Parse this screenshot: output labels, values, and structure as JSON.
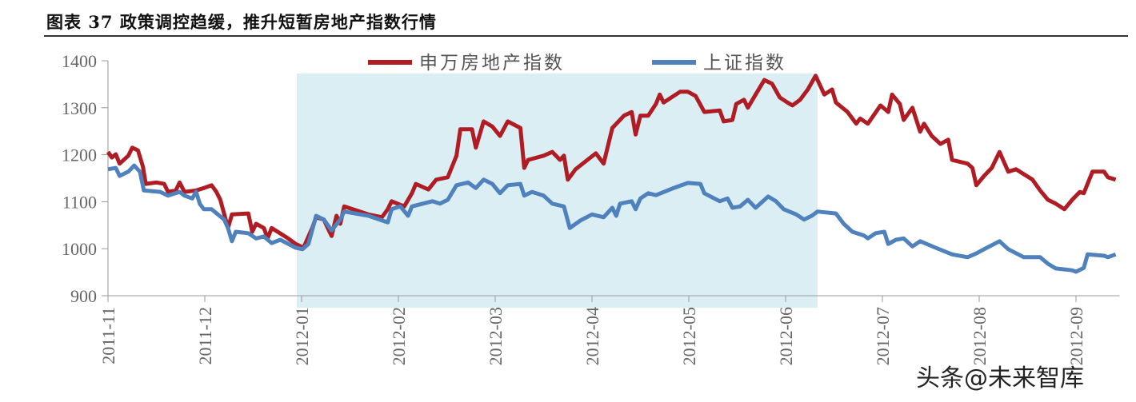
{
  "title": "图表 37  政策调控趋缓，推升短暂房地产指数行情",
  "watermark": "头条@未来智库",
  "chart_data": {
    "type": "line",
    "title": "政策调控趋缓，推升短暂房地产指数行情",
    "x_unit": "months since 2011-11-01",
    "x_ticks": [
      {
        "m": 0,
        "label": "2011-11"
      },
      {
        "m": 1,
        "label": "2011-12"
      },
      {
        "m": 2,
        "label": "2012-01"
      },
      {
        "m": 3,
        "label": "2012-02"
      },
      {
        "m": 4,
        "label": "2012-03"
      },
      {
        "m": 5,
        "label": "2012-04"
      },
      {
        "m": 6,
        "label": "2012-05"
      },
      {
        "m": 7,
        "label": "2012-06"
      },
      {
        "m": 8,
        "label": "2012-07"
      },
      {
        "m": 9,
        "label": "2012-08"
      },
      {
        "m": 10,
        "label": "2012-09"
      }
    ],
    "y_ticks": [
      900,
      1000,
      1100,
      1200,
      1300,
      1400
    ],
    "ylim": [
      900,
      1400
    ],
    "xlim": [
      0,
      10.45
    ],
    "grid": false,
    "legend_position": "top-center",
    "shaded_period": {
      "x_from": 1.95,
      "x_to": 7.33,
      "color": "#daeef3"
    },
    "series": [
      {
        "name": "申万房地产指数",
        "color": "#b01c24",
        "points": [
          [
            0,
            1206
          ],
          [
            0.04,
            1194
          ],
          [
            0.08,
            1201
          ],
          [
            0.12,
            1181
          ],
          [
            0.21,
            1198
          ],
          [
            0.25,
            1215
          ],
          [
            0.31,
            1209
          ],
          [
            0.36,
            1175
          ],
          [
            0.39,
            1138
          ],
          [
            0.5,
            1141
          ],
          [
            0.58,
            1138
          ],
          [
            0.62,
            1121
          ],
          [
            0.7,
            1124
          ],
          [
            0.74,
            1141
          ],
          [
            0.79,
            1121
          ],
          [
            0.91,
            1124
          ],
          [
            0.99,
            1129
          ],
          [
            1.07,
            1135
          ],
          [
            1.12,
            1121
          ],
          [
            1.16,
            1104
          ],
          [
            1.24,
            1044
          ],
          [
            1.28,
            1073
          ],
          [
            1.45,
            1075
          ],
          [
            1.49,
            1036
          ],
          [
            1.53,
            1053
          ],
          [
            1.61,
            1044
          ],
          [
            1.65,
            1022
          ],
          [
            1.69,
            1044
          ],
          [
            1.86,
            1022
          ],
          [
            1.94,
            1010
          ],
          [
            2.02,
            1002
          ],
          [
            2.11,
            1044
          ],
          [
            2.15,
            1067
          ],
          [
            2.23,
            1062
          ],
          [
            2.27,
            1044
          ],
          [
            2.31,
            1027
          ],
          [
            2.36,
            1070
          ],
          [
            2.4,
            1053
          ],
          [
            2.44,
            1090
          ],
          [
            2.69,
            1073
          ],
          [
            2.83,
            1067
          ],
          [
            2.89,
            1084
          ],
          [
            2.93,
            1101
          ],
          [
            3.06,
            1090
          ],
          [
            3.14,
            1118
          ],
          [
            3.18,
            1138
          ],
          [
            3.31,
            1126
          ],
          [
            3.39,
            1147
          ],
          [
            3.51,
            1152
          ],
          [
            3.6,
            1198
          ],
          [
            3.64,
            1254
          ],
          [
            3.76,
            1254
          ],
          [
            3.8,
            1215
          ],
          [
            3.88,
            1271
          ],
          [
            3.97,
            1260
          ],
          [
            4.05,
            1240
          ],
          [
            4.13,
            1271
          ],
          [
            4.26,
            1257
          ],
          [
            4.3,
            1172
          ],
          [
            4.34,
            1189
          ],
          [
            4.5,
            1198
          ],
          [
            4.59,
            1206
          ],
          [
            4.67,
            1189
          ],
          [
            4.71,
            1198
          ],
          [
            4.75,
            1147
          ],
          [
            4.83,
            1169
          ],
          [
            5.04,
            1203
          ],
          [
            5.12,
            1181
          ],
          [
            5.21,
            1257
          ],
          [
            5.33,
            1283
          ],
          [
            5.41,
            1291
          ],
          [
            5.45,
            1243
          ],
          [
            5.5,
            1283
          ],
          [
            5.58,
            1283
          ],
          [
            5.66,
            1308
          ],
          [
            5.7,
            1328
          ],
          [
            5.74,
            1311
          ],
          [
            5.91,
            1334
          ],
          [
            5.99,
            1334
          ],
          [
            6.07,
            1325
          ],
          [
            6.16,
            1291
          ],
          [
            6.32,
            1294
          ],
          [
            6.36,
            1271
          ],
          [
            6.45,
            1274
          ],
          [
            6.49,
            1308
          ],
          [
            6.57,
            1317
          ],
          [
            6.61,
            1300
          ],
          [
            6.69,
            1328
          ],
          [
            6.78,
            1359
          ],
          [
            6.86,
            1351
          ],
          [
            6.94,
            1322
          ],
          [
            7.02,
            1311
          ],
          [
            7.07,
            1305
          ],
          [
            7.15,
            1317
          ],
          [
            7.23,
            1339
          ],
          [
            7.31,
            1368
          ],
          [
            7.4,
            1328
          ],
          [
            7.48,
            1339
          ],
          [
            7.52,
            1311
          ],
          [
            7.64,
            1291
          ],
          [
            7.73,
            1266
          ],
          [
            7.77,
            1277
          ],
          [
            7.85,
            1266
          ],
          [
            7.98,
            1305
          ],
          [
            8.06,
            1291
          ],
          [
            8.1,
            1328
          ],
          [
            8.18,
            1308
          ],
          [
            8.22,
            1274
          ],
          [
            8.31,
            1300
          ],
          [
            8.39,
            1249
          ],
          [
            8.43,
            1266
          ],
          [
            8.51,
            1240
          ],
          [
            8.6,
            1223
          ],
          [
            8.68,
            1232
          ],
          [
            8.72,
            1189
          ],
          [
            8.88,
            1181
          ],
          [
            8.93,
            1172
          ],
          [
            8.97,
            1135
          ],
          [
            9.05,
            1155
          ],
          [
            9.13,
            1172
          ],
          [
            9.21,
            1206
          ],
          [
            9.3,
            1164
          ],
          [
            9.38,
            1169
          ],
          [
            9.55,
            1147
          ],
          [
            9.63,
            1124
          ],
          [
            9.71,
            1104
          ],
          [
            9.79,
            1096
          ],
          [
            9.88,
            1084
          ],
          [
            9.96,
            1104
          ],
          [
            10.04,
            1121
          ],
          [
            10.08,
            1118
          ],
          [
            10.17,
            1164
          ],
          [
            10.29,
            1164
          ],
          [
            10.33,
            1152
          ],
          [
            10.41,
            1147
          ]
        ]
      },
      {
        "name": "上证指数",
        "color": "#4f81bd",
        "points": [
          [
            0,
            1169
          ],
          [
            0.08,
            1172
          ],
          [
            0.12,
            1155
          ],
          [
            0.21,
            1164
          ],
          [
            0.27,
            1177
          ],
          [
            0.33,
            1164
          ],
          [
            0.37,
            1124
          ],
          [
            0.54,
            1121
          ],
          [
            0.62,
            1113
          ],
          [
            0.74,
            1121
          ],
          [
            0.79,
            1113
          ],
          [
            0.87,
            1107
          ],
          [
            0.91,
            1121
          ],
          [
            0.95,
            1095
          ],
          [
            0.99,
            1084
          ],
          [
            1.07,
            1084
          ],
          [
            1.2,
            1062
          ],
          [
            1.24,
            1044
          ],
          [
            1.28,
            1016
          ],
          [
            1.32,
            1036
          ],
          [
            1.45,
            1033
          ],
          [
            1.53,
            1022
          ],
          [
            1.61,
            1026
          ],
          [
            1.69,
            1012
          ],
          [
            1.78,
            1019
          ],
          [
            1.94,
            1002
          ],
          [
            2.01,
            999
          ],
          [
            2.07,
            1010
          ],
          [
            2.15,
            1070
          ],
          [
            2.23,
            1062
          ],
          [
            2.31,
            1039
          ],
          [
            2.4,
            1062
          ],
          [
            2.44,
            1079
          ],
          [
            2.69,
            1070
          ],
          [
            2.89,
            1056
          ],
          [
            2.93,
            1084
          ],
          [
            3.02,
            1090
          ],
          [
            3.1,
            1070
          ],
          [
            3.14,
            1090
          ],
          [
            3.35,
            1101
          ],
          [
            3.43,
            1096
          ],
          [
            3.51,
            1104
          ],
          [
            3.6,
            1135
          ],
          [
            3.72,
            1141
          ],
          [
            3.8,
            1129
          ],
          [
            3.88,
            1147
          ],
          [
            3.97,
            1138
          ],
          [
            4.05,
            1118
          ],
          [
            4.13,
            1135
          ],
          [
            4.26,
            1138
          ],
          [
            4.3,
            1113
          ],
          [
            4.38,
            1121
          ],
          [
            4.5,
            1113
          ],
          [
            4.59,
            1096
          ],
          [
            4.71,
            1090
          ],
          [
            4.77,
            1044
          ],
          [
            4.88,
            1060
          ],
          [
            5,
            1073
          ],
          [
            5.12,
            1067
          ],
          [
            5.21,
            1087
          ],
          [
            5.25,
            1070
          ],
          [
            5.29,
            1096
          ],
          [
            5.41,
            1101
          ],
          [
            5.45,
            1084
          ],
          [
            5.5,
            1107
          ],
          [
            5.58,
            1118
          ],
          [
            5.66,
            1114
          ],
          [
            5.83,
            1128
          ],
          [
            5.99,
            1140
          ],
          [
            6.12,
            1138
          ],
          [
            6.16,
            1118
          ],
          [
            6.32,
            1101
          ],
          [
            6.4,
            1107
          ],
          [
            6.45,
            1087
          ],
          [
            6.53,
            1090
          ],
          [
            6.61,
            1104
          ],
          [
            6.69,
            1087
          ],
          [
            6.82,
            1111
          ],
          [
            6.9,
            1101
          ],
          [
            6.98,
            1084
          ],
          [
            7.11,
            1073
          ],
          [
            7.19,
            1062
          ],
          [
            7.27,
            1070
          ],
          [
            7.33,
            1079
          ],
          [
            7.52,
            1075
          ],
          [
            7.6,
            1053
          ],
          [
            7.69,
            1036
          ],
          [
            7.81,
            1028
          ],
          [
            7.85,
            1022
          ],
          [
            7.93,
            1033
          ],
          [
            8.02,
            1036
          ],
          [
            8.06,
            1010
          ],
          [
            8.14,
            1019
          ],
          [
            8.22,
            1022
          ],
          [
            8.31,
            1005
          ],
          [
            8.39,
            1016
          ],
          [
            8.55,
            1002
          ],
          [
            8.72,
            988
          ],
          [
            8.88,
            982
          ],
          [
            8.97,
            990
          ],
          [
            9.05,
            999
          ],
          [
            9.21,
            1016
          ],
          [
            9.3,
            999
          ],
          [
            9.46,
            982
          ],
          [
            9.63,
            982
          ],
          [
            9.71,
            968
          ],
          [
            9.79,
            958
          ],
          [
            9.96,
            954
          ],
          [
            10,
            951
          ],
          [
            10.08,
            959
          ],
          [
            10.12,
            988
          ],
          [
            10.29,
            985
          ],
          [
            10.33,
            982
          ],
          [
            10.41,
            988
          ]
        ]
      }
    ]
  }
}
